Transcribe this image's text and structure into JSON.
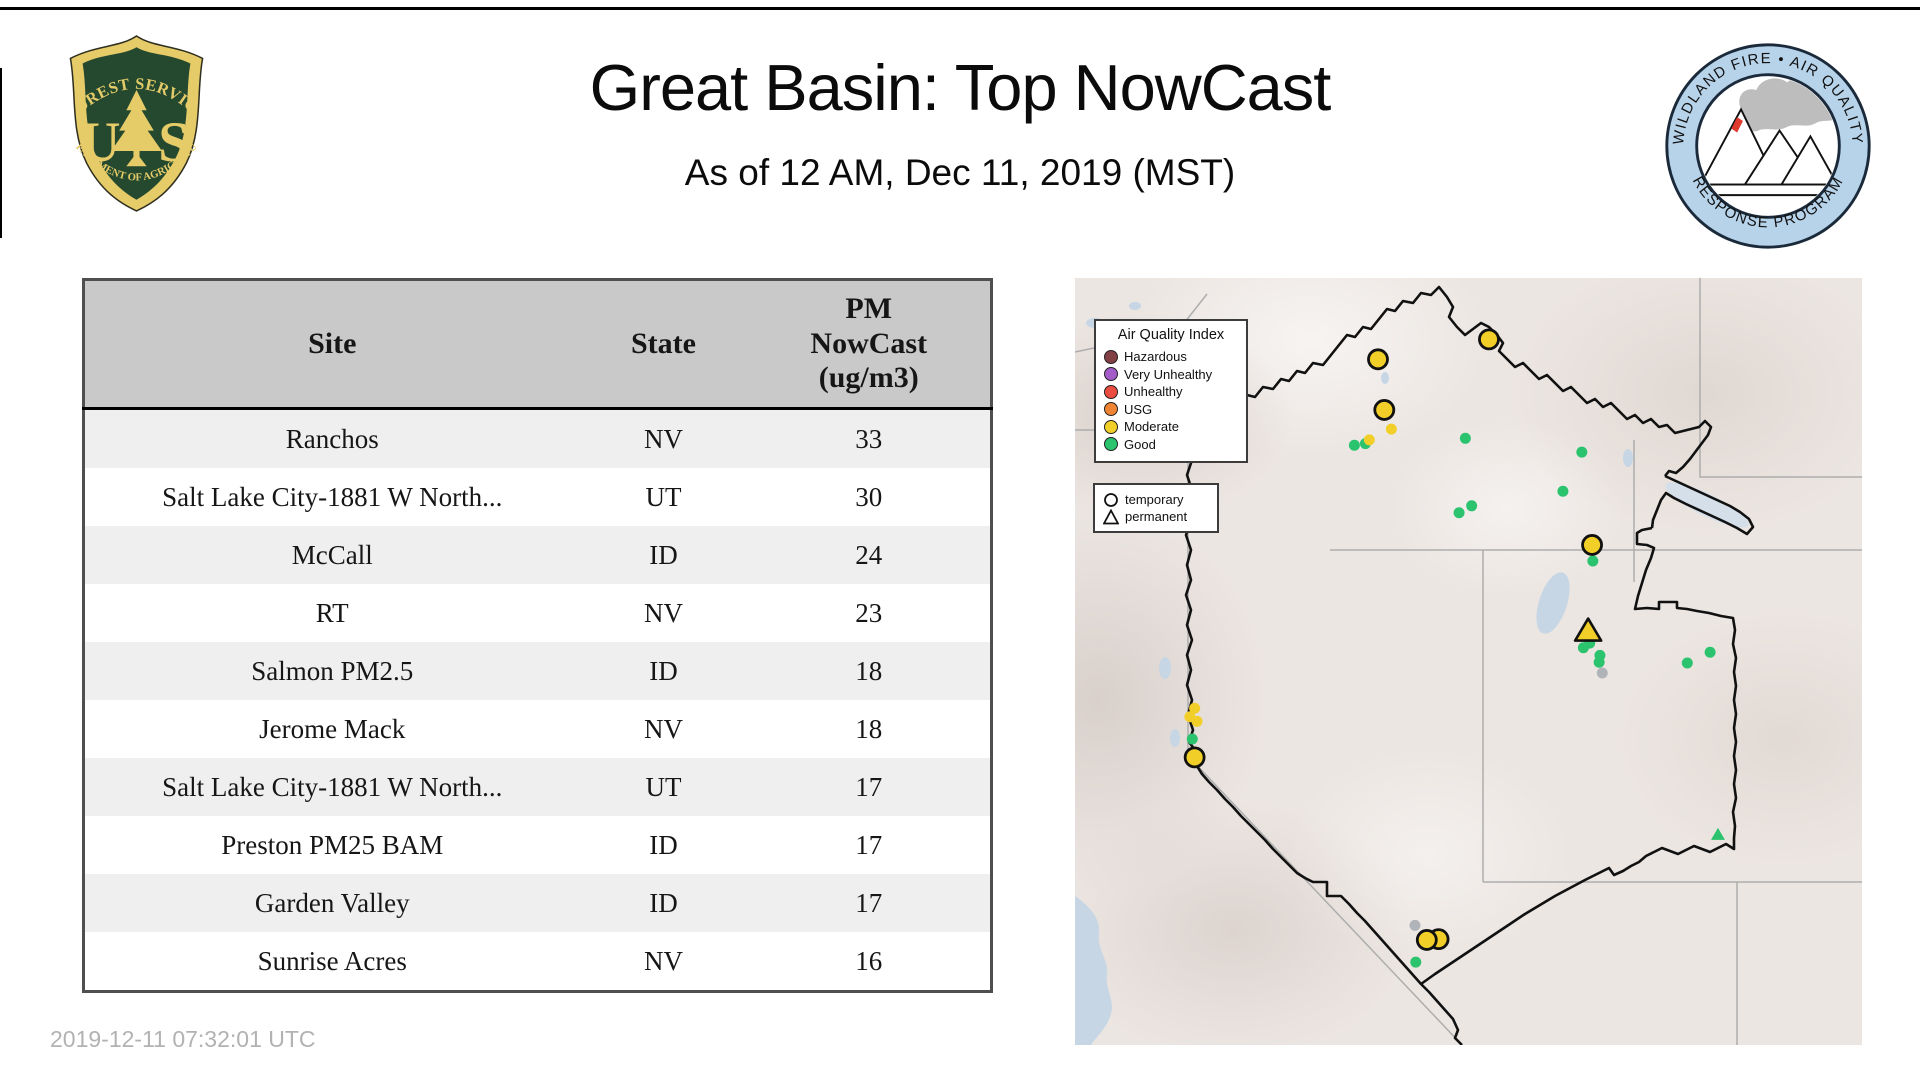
{
  "header": {
    "title": "Great Basin: Top NowCast",
    "subtitle": "As of 12 AM, Dec 11, 2019 (MST)",
    "usfs_logo": {
      "arc_top": "FOREST SERVICE",
      "letter_left": "U",
      "letter_right": "S",
      "arc_bottom": "DEPARTMENT OF AGRICULTURE"
    },
    "wfaqrp_logo": {
      "arc_top": "WILDLAND FIRE • AIR QUALITY",
      "arc_bottom": "RESPONSE PROGRAM"
    }
  },
  "table": {
    "columns": [
      "Site",
      "State",
      "PM\nNowCast\n(ug/m3)"
    ],
    "rows": [
      {
        "site": "Ranchos",
        "state": "NV",
        "value": "33"
      },
      {
        "site": "Salt Lake City-1881 W North...",
        "state": "UT",
        "value": "30"
      },
      {
        "site": "McCall",
        "state": "ID",
        "value": "24"
      },
      {
        "site": "RT",
        "state": "NV",
        "value": "23"
      },
      {
        "site": "Salmon PM2.5",
        "state": "ID",
        "value": "18"
      },
      {
        "site": "Jerome Mack",
        "state": "NV",
        "value": "18"
      },
      {
        "site": "Salt Lake City-1881 W North...",
        "state": "UT",
        "value": "17"
      },
      {
        "site": "Preston PM25 BAM",
        "state": "ID",
        "value": "17"
      },
      {
        "site": "Garden Valley",
        "state": "ID",
        "value": "17"
      },
      {
        "site": "Sunrise Acres",
        "state": "NV",
        "value": "16"
      }
    ]
  },
  "map": {
    "aqi_colors": {
      "hazardous": "#823f44",
      "very_unhealthy": "#a45cc9",
      "unhealthy": "#ea4c42",
      "usg": "#ef8433",
      "moderate": "#f2cf28",
      "good": "#2bc36d",
      "no_data": "#b0b4b8"
    },
    "legend_aqi": {
      "title": "Air Quality Index",
      "items": [
        {
          "label": "Hazardous",
          "aqi": "hazardous"
        },
        {
          "label": "Very Unhealthy",
          "aqi": "very_unhealthy"
        },
        {
          "label": "Unhealthy",
          "aqi": "unhealthy"
        },
        {
          "label": "USG",
          "aqi": "usg"
        },
        {
          "label": "Moderate",
          "aqi": "moderate"
        },
        {
          "label": "Good",
          "aqi": "good"
        }
      ]
    },
    "legend_type": {
      "items": [
        {
          "label": "temporary",
          "shape": "circle"
        },
        {
          "label": "permanent",
          "shape": "triangle"
        }
      ]
    },
    "markers": [
      {
        "shape": "dot",
        "aqi": "good",
        "x": 35.5,
        "y": 21.8
      },
      {
        "shape": "dot",
        "aqi": "good",
        "x": 36.9,
        "y": 21.6
      },
      {
        "shape": "dot",
        "aqi": "good",
        "x": 49.6,
        "y": 20.9
      },
      {
        "shape": "dot",
        "aqi": "good",
        "x": 64.4,
        "y": 22.7
      },
      {
        "shape": "dot",
        "aqi": "good",
        "x": 62.0,
        "y": 27.8
      },
      {
        "shape": "dot",
        "aqi": "good",
        "x": 48.8,
        "y": 30.6
      },
      {
        "shape": "dot",
        "aqi": "good",
        "x": 50.4,
        "y": 29.7
      },
      {
        "shape": "dot",
        "aqi": "good",
        "x": 65.8,
        "y": 36.9
      },
      {
        "shape": "dot",
        "aqi": "good",
        "x": 65.4,
        "y": 47.6
      },
      {
        "shape": "dot",
        "aqi": "good",
        "x": 64.6,
        "y": 48.2
      },
      {
        "shape": "dot",
        "aqi": "good",
        "x": 66.7,
        "y": 49.2
      },
      {
        "shape": "dot",
        "aqi": "good",
        "x": 66.6,
        "y": 50.1
      },
      {
        "shape": "dot",
        "aqi": "good",
        "x": 77.8,
        "y": 50.2
      },
      {
        "shape": "dot",
        "aqi": "good",
        "x": 80.7,
        "y": 48.8
      },
      {
        "shape": "dot",
        "aqi": "good",
        "x": 14.9,
        "y": 60.1
      },
      {
        "shape": "dot",
        "aqi": "good",
        "x": 43.3,
        "y": 89.2
      },
      {
        "shape": "dot",
        "aqi": "no_data",
        "x": 67.0,
        "y": 51.5
      },
      {
        "shape": "dot",
        "aqi": "no_data",
        "x": 43.2,
        "y": 84.4
      },
      {
        "shape": "dot",
        "aqi": "moderate",
        "x": 40.2,
        "y": 19.7
      },
      {
        "shape": "dot",
        "aqi": "moderate",
        "x": 37.4,
        "y": 21.1
      },
      {
        "shape": "dot",
        "aqi": "moderate",
        "x": 15.2,
        "y": 56.1
      },
      {
        "shape": "dot",
        "aqi": "moderate",
        "x": 14.6,
        "y": 57.2
      },
      {
        "shape": "dot",
        "aqi": "moderate",
        "x": 15.5,
        "y": 57.8
      },
      {
        "shape": "circle_lg",
        "aqi": "moderate",
        "x": 46.2,
        "y": 86.2
      },
      {
        "shape": "circle_lg",
        "aqi": "moderate",
        "x": 38.5,
        "y": 10.6
      },
      {
        "shape": "circle_lg",
        "aqi": "moderate",
        "x": 52.6,
        "y": 8.0
      },
      {
        "shape": "circle_lg",
        "aqi": "moderate",
        "x": 39.3,
        "y": 17.2
      },
      {
        "shape": "circle_lg",
        "aqi": "moderate",
        "x": 65.7,
        "y": 34.8
      },
      {
        "shape": "circle_lg",
        "aqi": "moderate",
        "x": 15.2,
        "y": 62.5
      },
      {
        "shape": "circle_lg",
        "aqi": "moderate",
        "x": 44.7,
        "y": 86.3
      },
      {
        "shape": "triangle",
        "aqi": "moderate",
        "x": 65.2,
        "y": 46.1
      },
      {
        "shape": "triangle_sm",
        "aqi": "good",
        "x": 81.7,
        "y": 72.6
      }
    ]
  },
  "footer": {
    "timestamp": "2019-12-11 07:32:01 UTC"
  }
}
